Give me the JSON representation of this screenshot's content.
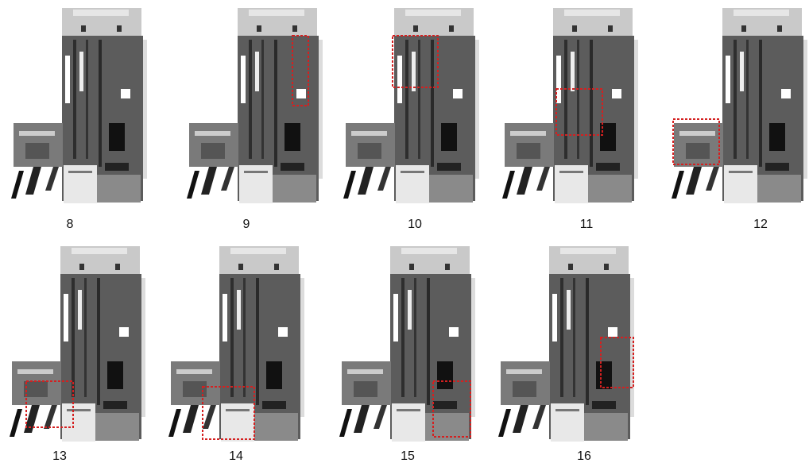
{
  "panels": [
    {
      "label": "8"
    },
    {
      "label": "9"
    },
    {
      "label": "10"
    },
    {
      "label": "11"
    },
    {
      "label": "12"
    },
    {
      "label": "13"
    },
    {
      "label": "14"
    },
    {
      "label": "15"
    },
    {
      "label": "16"
    }
  ]
}
